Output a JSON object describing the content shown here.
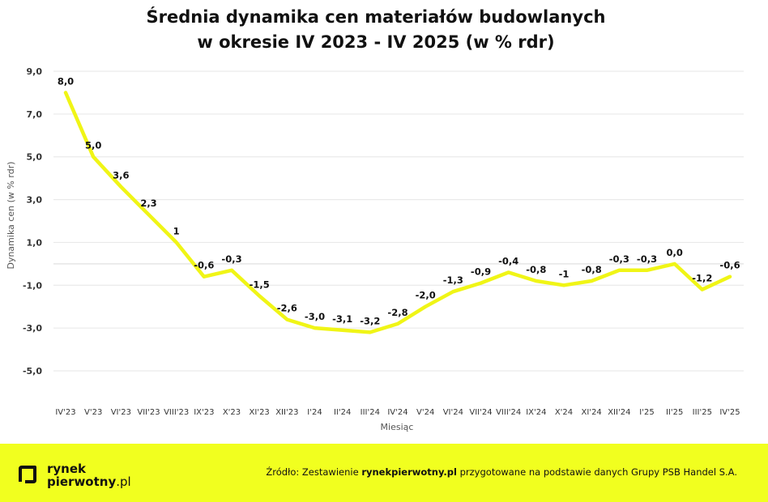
{
  "chart_data": {
    "type": "line",
    "title_lines": [
      "Średnia dynamika cen materiałów budowlanych",
      "w okresie IV 2023 - IV 2025 (w % rdr)"
    ],
    "xlabel": "Miesiąc",
    "ylabel": "Dynamika cen (w % rdr)",
    "ylim": [
      -5,
      9
    ],
    "y_ticks": [
      9,
      7,
      5,
      3,
      1,
      -1,
      -3,
      -5
    ],
    "y_tick_labels": [
      "9,0",
      "7,0",
      "5,0",
      "3,0",
      "1,0",
      "-1,0",
      "-3,0",
      "-5,0"
    ],
    "grid": true,
    "categories": [
      "IV'23",
      "V'23",
      "VI'23",
      "VII'23",
      "VIII'23",
      "IX'23",
      "X'23",
      "XI'23",
      "XII'23",
      "I'24",
      "II'24",
      "III'24",
      "IV'24",
      "V'24",
      "VI'24",
      "VII'24",
      "VIII'24",
      "IX'24",
      "X'24",
      "XI'24",
      "XII'24",
      "I'25",
      "II'25",
      "III'25",
      "IV'25"
    ],
    "series": [
      {
        "values": [
          8.0,
          5.0,
          3.6,
          2.3,
          1.0,
          -0.6,
          -0.3,
          -1.5,
          -2.6,
          -3.0,
          -3.1,
          -3.2,
          -2.8,
          -2.0,
          -1.3,
          -0.9,
          -0.4,
          -0.8,
          -1.0,
          -0.8,
          -0.3,
          -0.3,
          0.0,
          -1.2,
          -0.6
        ],
        "labels": [
          "8,0",
          "5,0",
          "3,6",
          "2,3",
          "1",
          "-0,6",
          "-0,3",
          "-1,5",
          "-2,6",
          "-3,0",
          "-3,1",
          "-3,2",
          "-2,8",
          "-2,0",
          "-1,3",
          "-0,9",
          "-0,4",
          "-0,8",
          "-1",
          "-0,8",
          "-0,3",
          "-0,3",
          "0,0",
          "-1,2",
          "-0,6"
        ],
        "color": "#f0f516"
      }
    ]
  },
  "footer": {
    "logo_line1": "rynek",
    "logo_line2_bold": "pierwotny",
    "logo_line2_tail": ".pl",
    "source_prefix": "Źródło: Zestawienie ",
    "source_bold": "rynekpierwotny.pl",
    "source_suffix": " przygotowane na podstawie danych Grupy PSB Handel S.A."
  },
  "colors": {
    "accent": "#f0f516",
    "footer_bg": "#f1ff1f"
  }
}
